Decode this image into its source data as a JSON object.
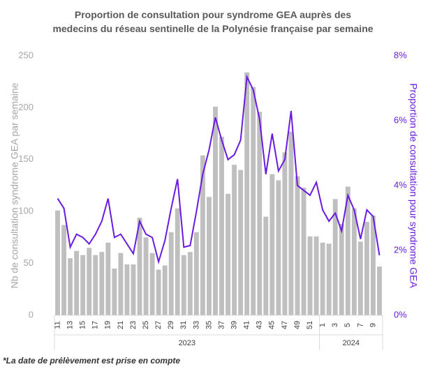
{
  "chart_data": {
    "type": "bar_line",
    "title": "Proportion de consultation pour syndrome GEA auprès des medecins du réseau sentinelle de la Polynésie française par semaine",
    "ylabel": "Nb de consultation syndrome GEA par semaine",
    "y2label": "Proportion de consultation pour syndrome GEA",
    "footnote": "*La date de prélèvement est prise en compte",
    "categories": [
      "11",
      null,
      "13",
      null,
      "15",
      null,
      "17",
      null,
      "19",
      null,
      "21",
      null,
      "23",
      null,
      "25",
      null,
      "27",
      null,
      "29",
      null,
      "31",
      null,
      "33",
      null,
      "35",
      null,
      "37",
      null,
      "39",
      null,
      "41",
      null,
      "43",
      null,
      "45",
      null,
      "47",
      null,
      "49",
      null,
      "51",
      null,
      "1",
      null,
      "3",
      null,
      "5",
      null,
      "7",
      null,
      "9",
      null
    ],
    "groups": [
      {
        "label": "2023",
        "size": 42
      },
      {
        "label": "2024",
        "size": 10
      }
    ],
    "series": [
      {
        "name": "Nb de consultation",
        "color": "#bfbfbf",
        "kind": "bar",
        "values": [
          101,
          87,
          55,
          62,
          58,
          65,
          58,
          61,
          70,
          45,
          60,
          49,
          49,
          94,
          75,
          60,
          44,
          48,
          80,
          103,
          58,
          61,
          80,
          154,
          114,
          201,
          172,
          117,
          145,
          140,
          234,
          220,
          196,
          95,
          136,
          130,
          157,
          177,
          134,
          123,
          76,
          76,
          70,
          69,
          112,
          88,
          124,
          103,
          71,
          90,
          96,
          47
        ]
      },
      {
        "name": "Proportion",
        "color": "#6a1be0",
        "kind": "line",
        "axis": "y2",
        "values": [
          3.6,
          3.3,
          2.1,
          2.5,
          2.4,
          2.2,
          2.5,
          2.9,
          3.6,
          2.4,
          2.5,
          2.2,
          1.9,
          2.9,
          2.5,
          2.4,
          1.65,
          2.3,
          3.3,
          4.2,
          2.1,
          2.15,
          3.2,
          4.35,
          5.1,
          6.1,
          5.4,
          4.8,
          4.95,
          5.4,
          7.35,
          6.95,
          6.05,
          4.35,
          5.6,
          4.45,
          4.8,
          6.3,
          4.0,
          3.85,
          3.7,
          4.1,
          3.25,
          2.9,
          3.15,
          2.6,
          3.7,
          3.25,
          2.35,
          3.25,
          3.05,
          1.85
        ]
      }
    ],
    "ylim": [
      0,
      250
    ],
    "yticks": [
      0,
      50,
      100,
      150,
      200,
      250
    ],
    "y2lim": [
      0,
      8
    ],
    "y2ticks": [
      {
        "value": 0,
        "label": "0%"
      },
      {
        "value": 2,
        "label": "2%"
      },
      {
        "value": 4,
        "label": "4%"
      },
      {
        "value": 6,
        "label": "6%"
      },
      {
        "value": 8,
        "label": "8%"
      }
    ],
    "grid": false
  }
}
